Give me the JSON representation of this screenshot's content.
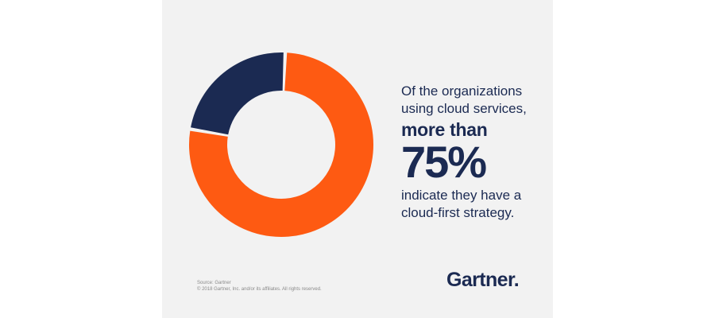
{
  "chart_data": {
    "type": "pie",
    "title": "",
    "slices": [
      {
        "label": "",
        "value": 77,
        "color": "#fe5a12"
      },
      {
        "label": "",
        "value": 23,
        "color": "#1b2a52"
      }
    ]
  },
  "statement": {
    "line1": "Of the organizations",
    "line2": "using cloud services,",
    "emphasis": "more than",
    "figure": "75%",
    "line3": "indicate they have a",
    "line4": "cloud-first strategy."
  },
  "footer": {
    "source": "Source: Gartner",
    "copyright": "© 2018 Gartner, Inc. and/or its affiliates. All rights reserved."
  },
  "brand": {
    "logo_text": "Gartner."
  },
  "colors": {
    "accent": "#fe5a12",
    "navy": "#1b2a52",
    "background": "#f2f2f2"
  }
}
